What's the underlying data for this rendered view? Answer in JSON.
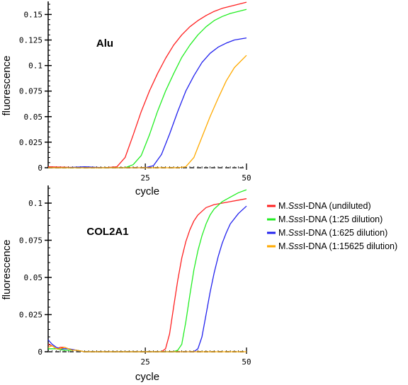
{
  "chart_data": [
    {
      "type": "line",
      "title": "Alu",
      "xlabel": "cycle",
      "ylabel": "fluorescence",
      "xlim": [
        1,
        50
      ],
      "ylim": [
        0,
        0.16
      ],
      "xticks": [
        25,
        50
      ],
      "xtick_labels": [
        "25",
        "50"
      ],
      "yticks": [
        0,
        0.025,
        0.05,
        0.075,
        0.1,
        0.125,
        0.15
      ],
      "ytick_labels": [
        "0",
        "0.025",
        "0.05",
        "0.075",
        "0.1",
        "0.125",
        "0.15"
      ],
      "threshold": 0,
      "series": [
        {
          "name": "M.SssI-DNA (undiluted)",
          "color": "#ff2020",
          "x": [
            1,
            5,
            10,
            15,
            18,
            20,
            22,
            24,
            26,
            28,
            30,
            32,
            34,
            36,
            38,
            40,
            42,
            44,
            46,
            48,
            50
          ],
          "y": [
            0.001,
            0.0005,
            0,
            0,
            0.001,
            0.01,
            0.032,
            0.055,
            0.075,
            0.092,
            0.107,
            0.12,
            0.13,
            0.138,
            0.144,
            0.149,
            0.153,
            0.156,
            0.158,
            0.16,
            0.162
          ]
        },
        {
          "name": "M.SssI-DNA (1:25 dilution)",
          "color": "#22ee22",
          "x": [
            1,
            5,
            10,
            15,
            20,
            22,
            24,
            26,
            28,
            30,
            32,
            34,
            36,
            38,
            40,
            42,
            44,
            46,
            48,
            50
          ],
          "y": [
            0,
            0,
            0,
            0,
            0,
            0.003,
            0.012,
            0.032,
            0.055,
            0.075,
            0.092,
            0.108,
            0.12,
            0.13,
            0.138,
            0.144,
            0.148,
            0.151,
            0.153,
            0.155
          ]
        },
        {
          "name": "M.SssI-DNA (1:625 dilution)",
          "color": "#2222ee",
          "x": [
            1,
            5,
            10,
            15,
            20,
            25,
            27,
            29,
            31,
            33,
            35,
            37,
            39,
            41,
            43,
            45,
            47,
            50
          ],
          "y": [
            0,
            0,
            0.001,
            0,
            0,
            0,
            0.002,
            0.013,
            0.033,
            0.055,
            0.075,
            0.09,
            0.103,
            0.112,
            0.118,
            0.122,
            0.125,
            0.127
          ]
        },
        {
          "name": "M.SssI-DNA (1:15625 dilution)",
          "color": "#ffaa00",
          "x": [
            1,
            10,
            20,
            30,
            33,
            35,
            37,
            39,
            41,
            43,
            45,
            47,
            50
          ],
          "y": [
            0,
            0,
            0,
            0,
            0,
            0.001,
            0.01,
            0.03,
            0.05,
            0.068,
            0.085,
            0.098,
            0.11
          ]
        }
      ]
    },
    {
      "type": "line",
      "title": "COL2A1",
      "xlabel": "cycle",
      "ylabel": "fluorescence",
      "xlim": [
        1,
        50
      ],
      "ylim": [
        0,
        0.11
      ],
      "xticks": [
        25,
        50
      ],
      "xtick_labels": [
        "25",
        "50"
      ],
      "yticks": [
        0,
        0.025,
        0.05,
        0.075,
        0.1
      ],
      "ytick_labels": [
        "0",
        "0.025",
        "0.05",
        "0.075",
        "0.1"
      ],
      "threshold": 0,
      "series": [
        {
          "name": "M.SssI-DNA (undiluted)",
          "color": "#ff2020",
          "x": [
            1,
            2,
            3,
            4,
            5,
            6,
            7,
            8,
            10,
            15,
            20,
            25,
            29,
            30,
            31,
            32,
            33,
            34,
            35,
            36,
            37,
            38,
            40,
            42,
            44,
            46,
            48,
            50
          ],
          "y": [
            0.005,
            0.004,
            0.002,
            0.003,
            0.003,
            0.002,
            0.001,
            0.001,
            0,
            0,
            0,
            0,
            0,
            0.002,
            0.012,
            0.03,
            0.048,
            0.063,
            0.074,
            0.082,
            0.088,
            0.092,
            0.097,
            0.099,
            0.1,
            0.101,
            0.102,
            0.103
          ]
        },
        {
          "name": "M.SssI-DNA (1:25 dilution)",
          "color": "#22ee22",
          "x": [
            1,
            3,
            5,
            8,
            10,
            15,
            20,
            25,
            30,
            32,
            33,
            34,
            35,
            36,
            37,
            38,
            39,
            40,
            41,
            42,
            44,
            46,
            48,
            50
          ],
          "y": [
            0.002,
            0.002,
            0.001,
            0.001,
            0,
            0,
            0,
            0,
            0,
            0,
            0.001,
            0.005,
            0.02,
            0.038,
            0.055,
            0.068,
            0.078,
            0.086,
            0.092,
            0.096,
            0.101,
            0.104,
            0.107,
            0.109
          ]
        },
        {
          "name": "M.SssI-DNA (1:625 dilution)",
          "color": "#2222ee",
          "x": [
            1,
            2,
            3,
            4,
            5,
            6,
            8,
            10,
            15,
            20,
            25,
            30,
            35,
            37,
            38,
            39,
            40,
            41,
            42,
            43,
            44,
            45,
            46,
            48,
            50
          ],
          "y": [
            0.008,
            0.005,
            0.003,
            0.002,
            0.002,
            0.002,
            0.001,
            0,
            0,
            0,
            0,
            0,
            0,
            0,
            0.002,
            0.01,
            0.025,
            0.04,
            0.053,
            0.064,
            0.073,
            0.08,
            0.086,
            0.093,
            0.098
          ]
        },
        {
          "name": "M.SssI-DNA (1:15625 dilution)",
          "color": "#ffaa00",
          "x": [
            1,
            2,
            3,
            4,
            5,
            6,
            7,
            8,
            10,
            20,
            30,
            40,
            50
          ],
          "y": [
            0.003,
            0.004,
            0.002,
            0.002,
            0.003,
            0.002,
            0.001,
            0.001,
            0,
            0,
            0,
            0,
            0
          ]
        }
      ]
    }
  ],
  "legend": {
    "placement": "right",
    "items": [
      {
        "prefix": "M.",
        "italic": "Sss",
        "suffix": "I-DNA (undiluted)",
        "color": "#ff2020"
      },
      {
        "prefix": "M.",
        "italic": "Sss",
        "suffix": "I-DNA (1:25 dilution)",
        "color": "#22ee22"
      },
      {
        "prefix": "M.",
        "italic": "Sss",
        "suffix": "I-DNA (1:625 dilution)",
        "color": "#2222ee"
      },
      {
        "prefix": "M.",
        "italic": "Sss",
        "suffix": "I-DNA (1:15625 dilution)",
        "color": "#ffaa00"
      }
    ]
  }
}
